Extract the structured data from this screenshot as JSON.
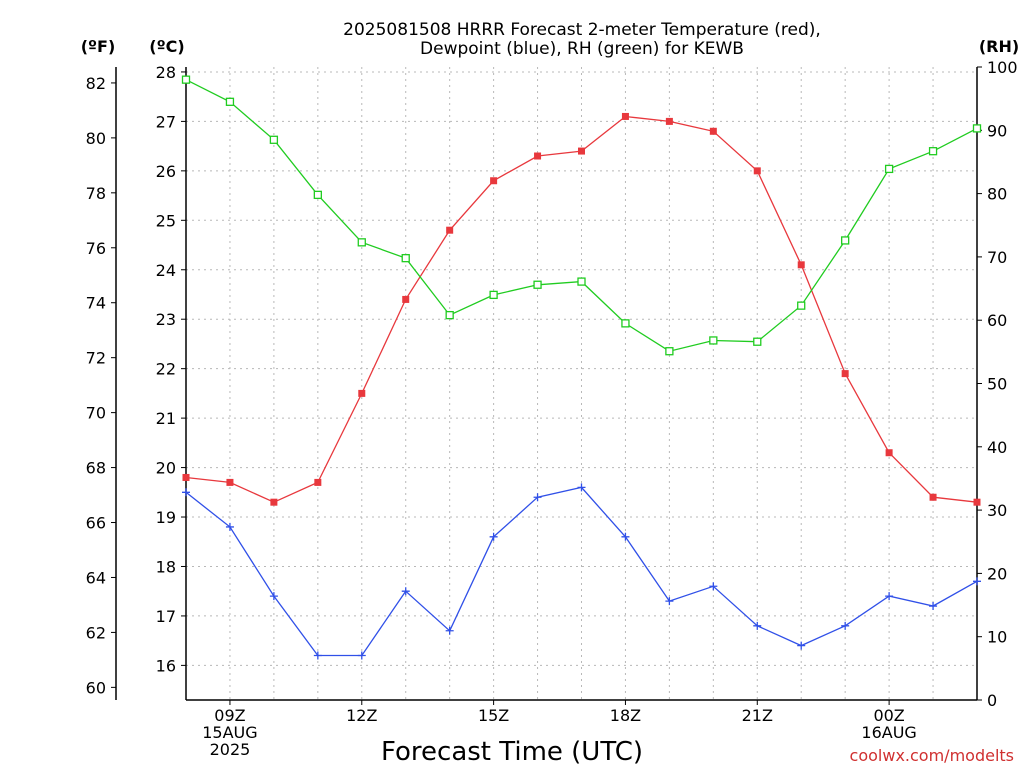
{
  "chart_data": {
    "type": "line",
    "title_lines": [
      "2025081508 HRRR Forecast 2-meter Temperature (red),",
      "Dewpoint (blue), RH (green) for KEWB"
    ],
    "xlabel": "Forecast Time (UTC)",
    "x_hours": [
      8,
      9,
      10,
      11,
      12,
      13,
      14,
      15,
      16,
      17,
      18,
      19,
      20,
      21,
      22,
      23,
      24,
      25,
      26
    ],
    "xlim": [
      8,
      26
    ],
    "x_ticks": [
      {
        "hour": 9,
        "lines": [
          "09Z",
          "15AUG",
          "2025"
        ]
      },
      {
        "hour": 12,
        "lines": [
          "12Z"
        ]
      },
      {
        "hour": 15,
        "lines": [
          "15Z"
        ]
      },
      {
        "hour": 18,
        "lines": [
          "18Z"
        ]
      },
      {
        "hour": 21,
        "lines": [
          "21Z"
        ]
      },
      {
        "hour": 24,
        "lines": [
          "00Z",
          "16AUG"
        ]
      }
    ],
    "axes": {
      "celsius": {
        "unit_label": "(ºC)",
        "lim": [
          15.3,
          28.1
        ],
        "ticks": [
          16,
          17,
          18,
          19,
          20,
          21,
          22,
          23,
          24,
          25,
          26,
          27,
          28
        ]
      },
      "fahrenheit": {
        "unit_label": "(ºF)",
        "ticks": [
          60,
          62,
          64,
          66,
          68,
          70,
          72,
          74,
          76,
          78,
          80,
          82
        ]
      },
      "rh": {
        "unit_label": "(RH)",
        "lim": [
          0,
          100
        ],
        "ticks": [
          0,
          10,
          20,
          30,
          40,
          50,
          60,
          70,
          80,
          90,
          100
        ]
      }
    },
    "grid": true,
    "series": [
      {
        "key": "temperature",
        "color": "#e8383d",
        "marker": "filled-square",
        "axis": "celsius",
        "values": [
          19.8,
          19.7,
          19.3,
          19.7,
          21.5,
          23.4,
          24.8,
          25.8,
          26.3,
          26.4,
          27.1,
          27.0,
          26.8,
          26.0,
          24.1,
          21.9,
          20.3,
          19.4,
          19.3
        ]
      },
      {
        "key": "dewpoint",
        "color": "#3050e8",
        "marker": "plus",
        "axis": "celsius",
        "values": [
          19.5,
          18.8,
          17.4,
          16.2,
          16.2,
          17.5,
          16.7,
          18.6,
          19.4,
          19.6,
          18.6,
          17.3,
          17.6,
          16.8,
          16.4,
          16.8,
          17.4,
          17.2,
          17.7
        ]
      },
      {
        "key": "rh",
        "color": "#20cc20",
        "marker": "open-square",
        "axis": "rh",
        "values": [
          98,
          94.5,
          88.5,
          79.8,
          72.3,
          69.8,
          60.8,
          64,
          65.6,
          66.1,
          59.5,
          55.1,
          56.8,
          56.6,
          62.3,
          72.6,
          83.9,
          86.7,
          90.3
        ]
      }
    ],
    "credit": "coolwx.com/modelts"
  }
}
